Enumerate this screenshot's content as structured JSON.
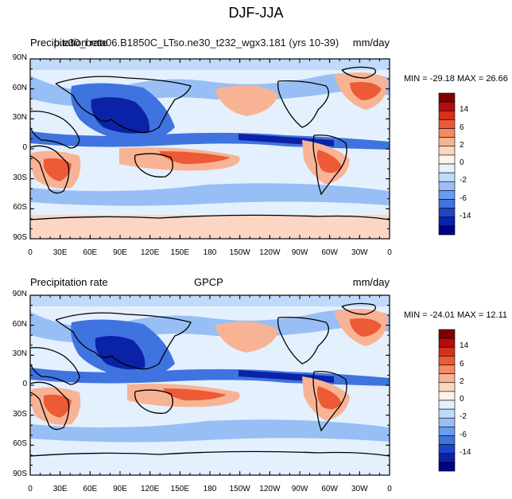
{
  "figure": {
    "title": "DJF-JJA"
  },
  "panels": [
    {
      "left_label": "Precipitation rate",
      "center_label": "b.e30_beta06.B1850C_LTso.ne30_t232_wgx3.181 (yrs 10-39)",
      "units": "mm/day",
      "min_max": "MIN = -29.18 MAX =  26.66"
    },
    {
      "left_label": "Precipitation rate",
      "center_label": "GPCP",
      "units": "mm/day",
      "min_max": "MIN = -24.01 MAX =  12.11"
    }
  ],
  "axes": {
    "lat_labels": [
      "90N",
      "60N",
      "30N",
      "0",
      "30S",
      "60S",
      "90S"
    ],
    "lon_labels": [
      "0",
      "30E",
      "60E",
      "90E",
      "120E",
      "150E",
      "180",
      "150W",
      "120W",
      "90W",
      "60W",
      "30W",
      "0"
    ]
  },
  "colorbar": {
    "labels": [
      "14",
      "6",
      "2",
      "0",
      "-2",
      "-6",
      "-14"
    ],
    "colors": [
      "#800000",
      "#b50c0c",
      "#d6301c",
      "#ec5a36",
      "#f58b62",
      "#f8b394",
      "#fbd7c3",
      "#fff3e6",
      "#e4f0fd",
      "#c1d9fb",
      "#97bff5",
      "#6a9ced",
      "#3f73e0",
      "#1d45cc",
      "#0a22a8",
      "#000080"
    ]
  },
  "map_colors": {
    "wet_strong": "#0a22a8",
    "wet_mid": "#3f73e0",
    "wet_light": "#97bff5",
    "wet_faint": "#c1d9fb",
    "background": "#e4f0fd",
    "dry_faint": "#fbd7c3",
    "dry_light": "#f8b394",
    "dry_mid": "#ec5a36",
    "dry_strong": "#b50c0c",
    "coast": "#000000"
  }
}
